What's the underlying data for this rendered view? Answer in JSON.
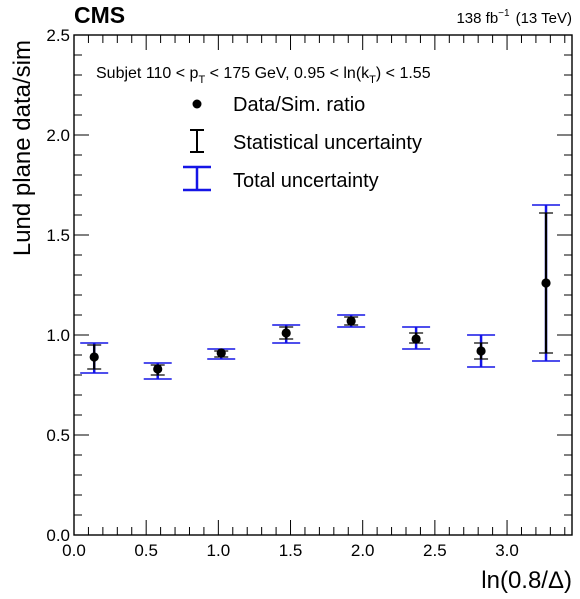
{
  "header": {
    "experiment": "CMS",
    "luminosity": "138 fb",
    "lumi_exponent": "−1",
    "energy": "(13 TeV)"
  },
  "selection": {
    "prefix": "Subjet 110 < p",
    "pt_sub": "T",
    "middle": " < 175 GeV, 0.95 < ln(k",
    "kt_sub": "T",
    "suffix": ") < 1.55"
  },
  "legend": {
    "entries": [
      {
        "label": "Data/Sim. ratio",
        "marker": "dot",
        "color": "#000000"
      },
      {
        "label": "Statistical uncertainty",
        "marker": "errorbar",
        "color": "#000000"
      },
      {
        "label": "Total uncertainty",
        "marker": "errorbar",
        "color": "#1515e6"
      }
    ]
  },
  "colors": {
    "data": "#000000",
    "stat": "#000000",
    "total": "#1515e6"
  },
  "chart_data": {
    "type": "scatter",
    "xlabel": "ln(0.8/Δ)",
    "ylabel": "Lund plane data/sim",
    "xlim": [
      0.0,
      3.45
    ],
    "ylim": [
      0.0,
      2.5
    ],
    "x_ticks": [
      0.0,
      0.5,
      1.0,
      1.5,
      2.0,
      2.5,
      3.0
    ],
    "x_tick_labels": [
      "0.0",
      "0.5",
      "1.0",
      "1.5",
      "2.0",
      "2.5",
      "3.0"
    ],
    "y_ticks": [
      0.0,
      0.5,
      1.0,
      1.5,
      2.0,
      2.5
    ],
    "y_tick_labels": [
      "0.0",
      "0.5",
      "1.0",
      "1.5",
      "2.0",
      "2.5"
    ],
    "grid": false,
    "points": [
      {
        "x": 0.14,
        "y": 0.89,
        "stat": [
          0.83,
          0.95
        ],
        "total": [
          0.81,
          0.96
        ]
      },
      {
        "x": 0.58,
        "y": 0.83,
        "stat": [
          0.8,
          0.85
        ],
        "total": [
          0.78,
          0.86
        ]
      },
      {
        "x": 1.02,
        "y": 0.91,
        "stat": [
          0.89,
          0.92
        ],
        "total": [
          0.88,
          0.93
        ]
      },
      {
        "x": 1.47,
        "y": 1.01,
        "stat": [
          0.98,
          1.04
        ],
        "total": [
          0.96,
          1.05
        ]
      },
      {
        "x": 1.92,
        "y": 1.07,
        "stat": [
          1.05,
          1.09
        ],
        "total": [
          1.04,
          1.1
        ]
      },
      {
        "x": 2.37,
        "y": 0.98,
        "stat": [
          0.96,
          1.01
        ],
        "total": [
          0.93,
          1.04
        ]
      },
      {
        "x": 2.82,
        "y": 0.92,
        "stat": [
          0.88,
          0.96
        ],
        "total": [
          0.84,
          1.0
        ]
      },
      {
        "x": 3.27,
        "y": 1.26,
        "stat": [
          0.91,
          1.61
        ],
        "total": [
          0.87,
          1.65
        ]
      }
    ]
  }
}
